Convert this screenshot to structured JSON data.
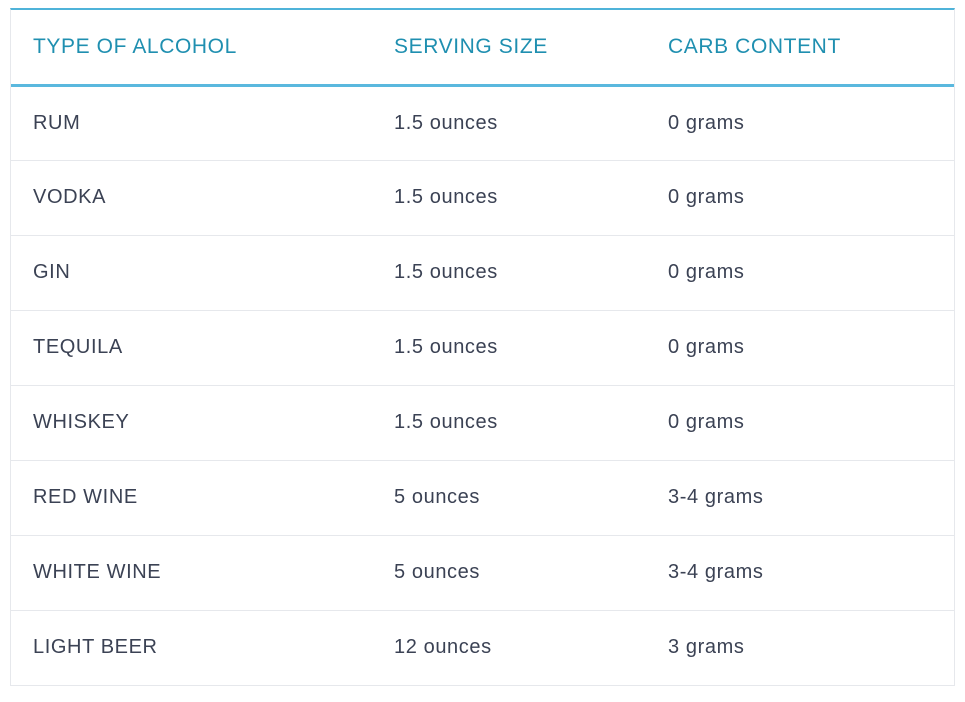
{
  "table": {
    "headers": [
      "TYPE OF ALCOHOL",
      "SERVING SIZE",
      "CARB CONTENT"
    ],
    "rows": [
      [
        "RUM",
        "1.5 ounces",
        "0 grams"
      ],
      [
        "VODKA",
        "1.5 ounces",
        "0 grams"
      ],
      [
        "GIN",
        "1.5 ounces",
        "0 grams"
      ],
      [
        "TEQUILA",
        "1.5 ounces",
        "0 grams"
      ],
      [
        "WHISKEY",
        "1.5 ounces",
        "0 grams"
      ],
      [
        "RED WINE",
        "5 ounces",
        "3-4 grams"
      ],
      [
        "WHITE WINE",
        "5 ounces",
        "3-4 grams"
      ],
      [
        "LIGHT BEER",
        "12 ounces",
        "3 grams"
      ]
    ]
  },
  "colors": {
    "header_text": "#1f8fb0",
    "accent_line": "#5ab8de",
    "body_text": "#3b4254",
    "row_divider": "#e6e8ec"
  }
}
